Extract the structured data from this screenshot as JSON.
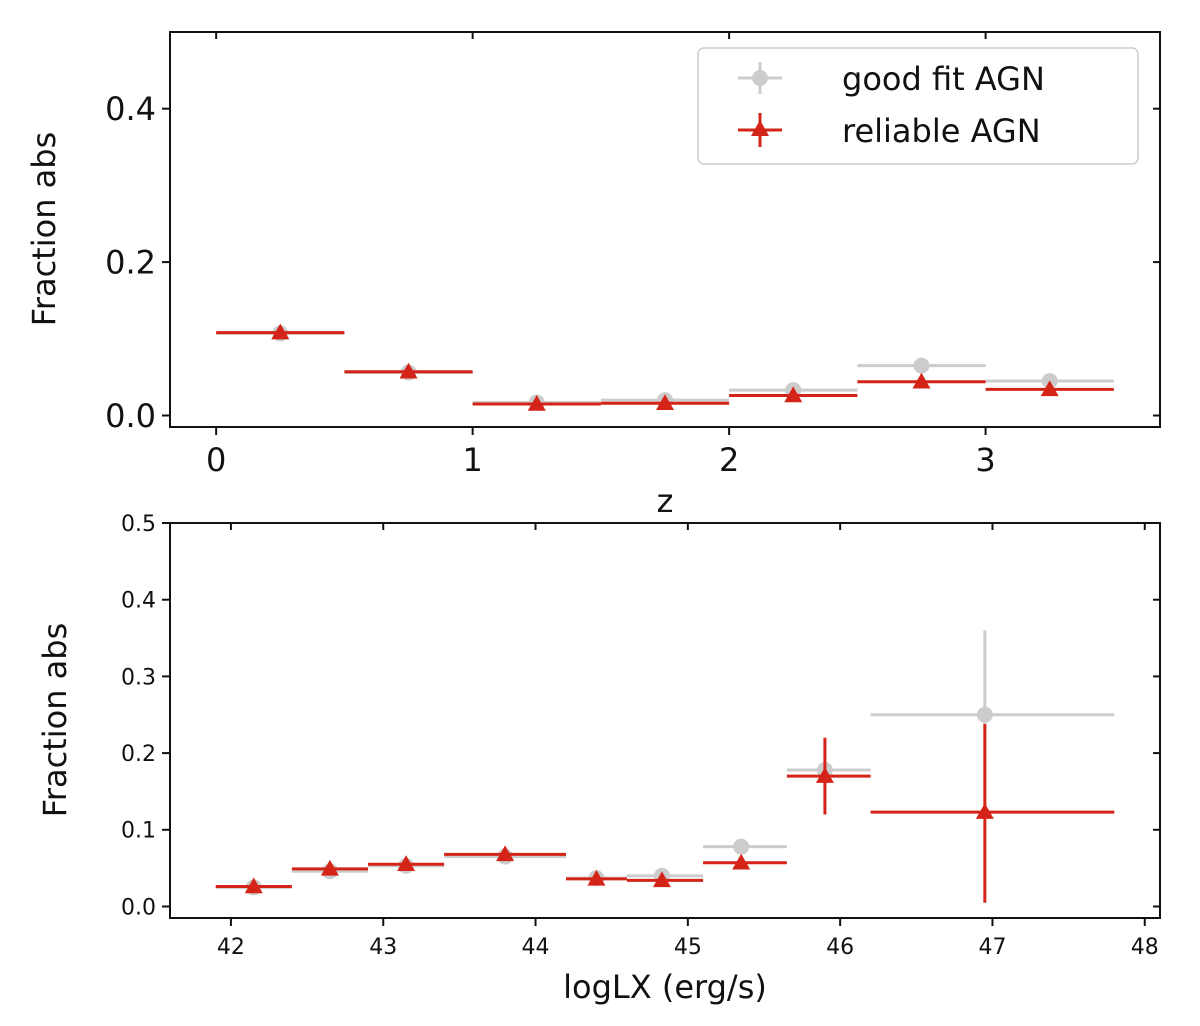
{
  "colors": {
    "good": "#cccccc",
    "reliable": "#d42418",
    "axis": "#111111"
  },
  "chart_data": [
    {
      "type": "scatter",
      "xlabel": "z",
      "ylabel": "Fraction abs",
      "xlim": [
        -0.18,
        3.68
      ],
      "ylim": [
        -0.015,
        0.5
      ],
      "xticks": [
        0,
        1,
        2,
        3
      ],
      "xtick_labels": [
        "0",
        "1",
        "2",
        "3"
      ],
      "yticks": [
        0.0,
        0.2,
        0.4
      ],
      "ytick_labels": [
        "0.0",
        "0.2",
        "0.4"
      ],
      "legend": {
        "position": "top-right",
        "entries": [
          {
            "key": "good",
            "label": "good fit AGN"
          },
          {
            "key": "reliable",
            "label": "reliable AGN"
          }
        ]
      },
      "series": [
        {
          "name": "good fit AGN",
          "key": "good",
          "marker": "circle",
          "points": [
            {
              "x": 0.25,
              "x0": 0.0,
              "x1": 0.5,
              "y": 0.107,
              "ylo": 0.105,
              "yhi": 0.109
            },
            {
              "x": 0.75,
              "x0": 0.5,
              "x1": 1.0,
              "y": 0.056,
              "ylo": 0.054,
              "yhi": 0.058
            },
            {
              "x": 1.25,
              "x0": 1.0,
              "x1": 1.5,
              "y": 0.017,
              "ylo": 0.015,
              "yhi": 0.019
            },
            {
              "x": 1.75,
              "x0": 1.5,
              "x1": 2.0,
              "y": 0.02,
              "ylo": 0.018,
              "yhi": 0.022
            },
            {
              "x": 2.25,
              "x0": 2.0,
              "x1": 2.5,
              "y": 0.033,
              "ylo": 0.03,
              "yhi": 0.036
            },
            {
              "x": 2.75,
              "x0": 2.5,
              "x1": 3.0,
              "y": 0.065,
              "ylo": 0.061,
              "yhi": 0.069
            },
            {
              "x": 3.25,
              "x0": 3.0,
              "x1": 3.5,
              "y": 0.045,
              "ylo": 0.041,
              "yhi": 0.049
            }
          ]
        },
        {
          "name": "reliable AGN",
          "key": "reliable",
          "marker": "triangle",
          "points": [
            {
              "x": 0.25,
              "x0": 0.0,
              "x1": 0.5,
              "y": 0.108,
              "ylo": 0.106,
              "yhi": 0.11
            },
            {
              "x": 0.75,
              "x0": 0.5,
              "x1": 1.0,
              "y": 0.057,
              "ylo": 0.055,
              "yhi": 0.059
            },
            {
              "x": 1.25,
              "x0": 1.0,
              "x1": 1.5,
              "y": 0.015,
              "ylo": 0.013,
              "yhi": 0.017
            },
            {
              "x": 1.75,
              "x0": 1.5,
              "x1": 2.0,
              "y": 0.016,
              "ylo": 0.014,
              "yhi": 0.018
            },
            {
              "x": 2.25,
              "x0": 2.0,
              "x1": 2.5,
              "y": 0.026,
              "ylo": 0.024,
              "yhi": 0.028
            },
            {
              "x": 2.75,
              "x0": 2.5,
              "x1": 3.0,
              "y": 0.044,
              "ylo": 0.041,
              "yhi": 0.047
            },
            {
              "x": 3.25,
              "x0": 3.0,
              "x1": 3.5,
              "y": 0.034,
              "ylo": 0.031,
              "yhi": 0.037
            }
          ]
        }
      ]
    },
    {
      "type": "scatter",
      "xlabel": "logLX (erg/s)",
      "ylabel": "Fraction abs",
      "xlim": [
        41.6,
        48.1
      ],
      "ylim": [
        -0.015,
        0.5
      ],
      "xticks": [
        42,
        43,
        44,
        45,
        46,
        47,
        48
      ],
      "xtick_labels": [
        "42",
        "43",
        "44",
        "45",
        "46",
        "47",
        "48"
      ],
      "yticks": [
        0.0,
        0.1,
        0.2,
        0.3,
        0.4,
        0.5
      ],
      "ytick_labels": [
        "0.0",
        "0.1",
        "0.2",
        "0.3",
        "0.4",
        "0.5"
      ],
      "series": [
        {
          "name": "good fit AGN",
          "key": "good",
          "marker": "circle",
          "points": [
            {
              "x": 42.15,
              "x0": 41.9,
              "x1": 42.4,
              "y": 0.025,
              "ylo": 0.023,
              "yhi": 0.027
            },
            {
              "x": 42.65,
              "x0": 42.4,
              "x1": 42.9,
              "y": 0.046,
              "ylo": 0.044,
              "yhi": 0.048
            },
            {
              "x": 43.15,
              "x0": 42.9,
              "x1": 43.4,
              "y": 0.053,
              "ylo": 0.051,
              "yhi": 0.055
            },
            {
              "x": 43.8,
              "x0": 43.4,
              "x1": 44.2,
              "y": 0.065,
              "ylo": 0.063,
              "yhi": 0.067
            },
            {
              "x": 44.4,
              "x0": 44.2,
              "x1": 44.6,
              "y": 0.037,
              "ylo": 0.035,
              "yhi": 0.039
            },
            {
              "x": 44.83,
              "x0": 44.6,
              "x1": 45.1,
              "y": 0.04,
              "ylo": 0.037,
              "yhi": 0.043
            },
            {
              "x": 45.35,
              "x0": 45.1,
              "x1": 45.65,
              "y": 0.078,
              "ylo": 0.072,
              "yhi": 0.084
            },
            {
              "x": 45.9,
              "x0": 45.65,
              "x1": 46.2,
              "y": 0.178,
              "ylo": 0.17,
              "yhi": 0.186
            },
            {
              "x": 46.95,
              "x0": 46.2,
              "x1": 47.8,
              "y": 0.25,
              "ylo": 0.14,
              "yhi": 0.36
            }
          ]
        },
        {
          "name": "reliable AGN",
          "key": "reliable",
          "marker": "triangle",
          "points": [
            {
              "x": 42.15,
              "x0": 41.9,
              "x1": 42.4,
              "y": 0.026,
              "ylo": 0.024,
              "yhi": 0.028
            },
            {
              "x": 42.65,
              "x0": 42.4,
              "x1": 42.9,
              "y": 0.049,
              "ylo": 0.047,
              "yhi": 0.051
            },
            {
              "x": 43.15,
              "x0": 42.9,
              "x1": 43.4,
              "y": 0.055,
              "ylo": 0.053,
              "yhi": 0.057
            },
            {
              "x": 43.8,
              "x0": 43.4,
              "x1": 44.2,
              "y": 0.068,
              "ylo": 0.066,
              "yhi": 0.07
            },
            {
              "x": 44.4,
              "x0": 44.2,
              "x1": 44.6,
              "y": 0.036,
              "ylo": 0.034,
              "yhi": 0.038
            },
            {
              "x": 44.83,
              "x0": 44.6,
              "x1": 45.1,
              "y": 0.034,
              "ylo": 0.032,
              "yhi": 0.036
            },
            {
              "x": 45.35,
              "x0": 45.1,
              "x1": 45.65,
              "y": 0.057,
              "ylo": 0.052,
              "yhi": 0.062
            },
            {
              "x": 45.9,
              "x0": 45.65,
              "x1": 46.2,
              "y": 0.17,
              "ylo": 0.12,
              "yhi": 0.22
            },
            {
              "x": 46.95,
              "x0": 46.2,
              "x1": 47.8,
              "y": 0.123,
              "ylo": 0.005,
              "yhi": 0.238
            }
          ]
        }
      ]
    }
  ]
}
